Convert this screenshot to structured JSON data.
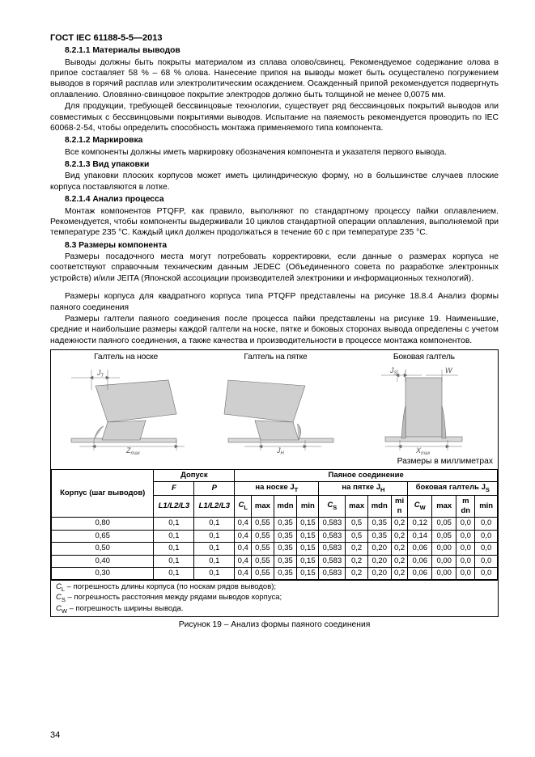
{
  "doc": {
    "code": "ГОСТ IEC 61188-5-5—2013",
    "page_num": "34"
  },
  "sec": {
    "s8211_t": "8.2.1.1 Материалы выводов",
    "s8211_p1": "Выводы должны быть покрыты материалом из сплава олово/свинец. Рекомендуемое содержание олова в припое составляет 58 % – 68 % олова. Нанесение припоя на выводы может быть осуществлено погружением выводов в горячий расплав или электролитическим осаждением. Осажденный припой рекомендуется подвергнуть оплавлению. Оловянно-свинцовое покрытие электродов должно быть толщиной не менее 0,0075 мм.",
    "s8211_p2": "Для продукции, требующей бессвинцовые технологии, существует ряд бессвинцовых покрытий выводов или совместимых с бессвинцовыми покрытиями выводов. Испытание на паяемость рекомендуется проводить по IEC 60068-2-54, чтобы определить способность монтажа применяемого типа компонента.",
    "s8212_t": "8.2.1.2 Маркировка",
    "s8212_p": "Все компоненты должны иметь маркировку обозначения компонента и указателя первого вывода.",
    "s8213_t": "8.2.1.3 Вид упаковки",
    "s8213_p": "Вид упаковки плоских корпусов может иметь цилиндрическую форму, но в большинстве случаев плоские корпуса поставляются в лотке.",
    "s8214_t": "8.2.1.4 Анализ процесса",
    "s8214_p1": "Монтаж компонентов PTQFP, как правило, выполняют по стандартному процессу пайки оплавлением. Рекомендуется, чтобы компоненты выдерживали 10 циклов стандартной операции оплавления, выполняемой при температуре 235 °C. Каждый цикл должен продолжаться в течение 60 с при температуре 235 °C.",
    "s83_t": "8.3 Размеры компонента",
    "s83_p1": "Размеры посадочного места могут потребовать корректировки, если данные о размерах корпуса не соответствуют справочным техническим данным JEDEC (Объединенного совета по разработке электронных устройств) и/или JEITA (Японской ассоциации производителей электроники и информационных технологий).",
    "s83_p2": "Размеры корпуса для квадратного корпуса типа PTQFP представлены на рисунке 18.8.4 Анализ формы паяного соединения",
    "s83_p3": "Размеры галтели паяного соединения после процесса пайки представлены на рисунке 19. Наименьшие, средние и наибольшие размеры каждой галтели на носке, пятке и боковых сторонах вывода определены с учетом надежности паяного соединения, а также качества и производительности в процессе монтажа компонентов."
  },
  "fig": {
    "label_toe": "Галтель на носке",
    "label_heel": "Галтель на пятке",
    "label_side": "Боковая галтель",
    "size_note": "Размеры в миллиметрах",
    "jt": "J",
    "jt_sub": "T",
    "jh": "J",
    "jh_sub": "H",
    "js": "J",
    "js_sub": "S",
    "w": "W",
    "zmax": "Z",
    "zmax_sub": "max",
    "xmax": "X",
    "xmax_sub": "max"
  },
  "table": {
    "h_body": "Корпус (шаг выводов)",
    "h_tol": "Допуск",
    "h_joint": "Паяное соединение",
    "h_F": "F",
    "h_P": "P",
    "h_toe": "на носке J",
    "h_toe_sub": "T",
    "h_heel": "на пятке J",
    "h_heel_sub": "H",
    "h_side": "боковая галтель J",
    "h_side_sub": "S",
    "h_L": "L1/L2/L3",
    "h_LP": "L1/L2/L3",
    "h_CL": "C",
    "h_CL_sub": "L",
    "h_CS": "C",
    "h_CS_sub": "S",
    "h_CW": "C",
    "h_CW_sub": "W",
    "h_max": "max",
    "h_mdn": "mdn",
    "h_min": "min",
    "rows": [
      {
        "pitch": "0,80",
        "F": "0,1",
        "P": "0,1",
        "CL": "0,4",
        "t_max": "0,55",
        "t_mdn": "0,35",
        "t_min": "0,15",
        "CS": "0,583",
        "h_max": "0,5",
        "h_mdn": "0,35",
        "h_min": "0,2",
        "CW": "0,12",
        "s_max": "0,05",
        "s_mdn": "0,0",
        "s_min": "0,0"
      },
      {
        "pitch": "0,65",
        "F": "0,1",
        "P": "0,1",
        "CL": "0,4",
        "t_max": "0,55",
        "t_mdn": "0,35",
        "t_min": "0,15",
        "CS": "0,583",
        "h_max": "0,5",
        "h_mdn": "0,35",
        "h_min": "0,2",
        "CW": "0,14",
        "s_max": "0,05",
        "s_mdn": "0,0",
        "s_min": "0,0"
      },
      {
        "pitch": "0,50",
        "F": "0,1",
        "P": "0,1",
        "CL": "0,4",
        "t_max": "0,55",
        "t_mdn": "0,35",
        "t_min": "0,15",
        "CS": "0,583",
        "h_max": "0,2",
        "h_mdn": "0,20",
        "h_min": "0,2",
        "CW": "0,06",
        "s_max": "0,00",
        "s_mdn": "0,0",
        "s_min": "0,0"
      },
      {
        "pitch": "0,40",
        "F": "0,1",
        "P": "0,1",
        "CL": "0,4",
        "t_max": "0,55",
        "t_mdn": "0,35",
        "t_min": "0,15",
        "CS": "0,583",
        "h_max": "0,2",
        "h_mdn": "0,20",
        "h_min": "0,2",
        "CW": "0,06",
        "s_max": "0,00",
        "s_mdn": "0,0",
        "s_min": "0,0"
      },
      {
        "pitch": "0,30",
        "F": "0,1",
        "P": "0,1",
        "CL": "0,4",
        "t_max": "0,55",
        "t_mdn": "0,35",
        "t_min": "0,15",
        "CS": "0,583",
        "h_max": "0,2",
        "h_mdn": "0,20",
        "h_min": "0,2",
        "CW": "0,06",
        "s_max": "0,00",
        "s_mdn": "0,0",
        "s_min": "0,0"
      }
    ],
    "foot1": "C L – погрешность длины корпуса (по носкам рядов выводов);",
    "foot2": "C S – погрешность расстояния между рядами выводов корпуса;",
    "foot3": "C W – погрешность ширины вывода.",
    "caption": "Рисунок 19  –  Анализ формы паяного соединения"
  }
}
